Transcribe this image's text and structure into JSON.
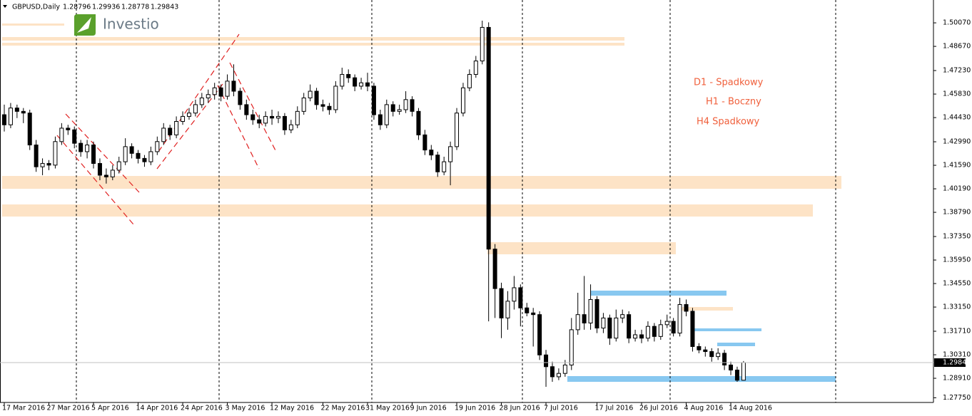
{
  "symbol": "GBPUSD,Daily",
  "logo": "Investio",
  "annotations": [
    "D1 - Spadkowy",
    "H1 - Boczny",
    "H4 Spadkowy"
  ],
  "chart_data": {
    "type": "candlestick",
    "categories": [
      "17 Mar 2016",
      null,
      null,
      null,
      null,
      null,
      null,
      "27 Mar 2016",
      null,
      null,
      null,
      null,
      null,
      null,
      "5 Apr 2016",
      null,
      null,
      null,
      null,
      null,
      null,
      "14 Apr 2016",
      null,
      null,
      null,
      null,
      null,
      null,
      "24 Apr 2016",
      null,
      null,
      null,
      null,
      null,
      null,
      "3 May 2016",
      null,
      null,
      null,
      null,
      null,
      null,
      "12 May 2016",
      null,
      null,
      null,
      null,
      null,
      null,
      null,
      "22 May 2016",
      null,
      null,
      null,
      null,
      null,
      null,
      "31 May 2016",
      null,
      null,
      null,
      null,
      null,
      null,
      "9 Jun 2016",
      null,
      null,
      null,
      null,
      null,
      null,
      "19 Jun 2016",
      null,
      null,
      null,
      null,
      null,
      null,
      "28 Jun 2016",
      null,
      null,
      null,
      null,
      null,
      null,
      "7 Jul 2016",
      null,
      null,
      null,
      null,
      null,
      null,
      null,
      "17 Jul 2016",
      null,
      null,
      null,
      null,
      null,
      null,
      "26 Jul 2016",
      null,
      null,
      null,
      null,
      null,
      null,
      "4 Aug 2016",
      null,
      null,
      null,
      null,
      null,
      null,
      "14 Aug 2016",
      null,
      null
    ],
    "ohlc": [
      [
        1.446,
        1.452,
        1.436,
        1.44
      ],
      [
        1.44,
        1.453,
        1.438,
        1.45
      ],
      [
        1.45,
        1.452,
        1.444,
        1.448
      ],
      [
        1.448,
        1.45,
        1.441,
        1.447
      ],
      [
        1.447,
        1.449,
        1.425,
        1.428
      ],
      [
        1.428,
        1.431,
        1.412,
        1.415
      ],
      [
        1.415,
        1.42,
        1.41,
        1.417
      ],
      [
        1.417,
        1.419,
        1.413,
        1.416
      ],
      [
        1.416,
        1.433,
        1.414,
        1.43
      ],
      [
        1.43,
        1.441,
        1.428,
        1.438
      ],
      [
        1.438,
        1.44,
        1.434,
        1.437
      ],
      [
        1.437,
        1.439,
        1.426,
        1.429
      ],
      [
        1.429,
        1.431,
        1.421,
        1.424
      ],
      [
        1.424,
        1.431,
        1.42,
        1.428
      ],
      [
        1.428,
        1.43,
        1.414,
        1.417
      ],
      [
        1.417,
        1.42,
        1.407,
        1.41
      ],
      [
        1.41,
        1.414,
        1.405,
        1.409
      ],
      [
        1.409,
        1.416,
        1.407,
        1.413
      ],
      [
        1.413,
        1.421,
        1.411,
        1.418
      ],
      [
        1.418,
        1.432,
        1.416,
        1.427
      ],
      [
        1.427,
        1.429,
        1.42,
        1.423
      ],
      [
        1.423,
        1.425,
        1.417,
        1.42
      ],
      [
        1.42,
        1.422,
        1.415,
        1.418
      ],
      [
        1.418,
        1.427,
        1.416,
        1.424
      ],
      [
        1.424,
        1.433,
        1.422,
        1.43
      ],
      [
        1.43,
        1.441,
        1.428,
        1.438
      ],
      [
        1.438,
        1.44,
        1.431,
        1.434
      ],
      [
        1.434,
        1.445,
        1.432,
        1.442
      ],
      [
        1.442,
        1.448,
        1.44,
        1.445
      ],
      [
        1.445,
        1.45,
        1.443,
        1.447
      ],
      [
        1.447,
        1.455,
        1.445,
        1.452
      ],
      [
        1.452,
        1.459,
        1.45,
        1.456
      ],
      [
        1.456,
        1.461,
        1.453,
        1.458
      ],
      [
        1.458,
        1.465,
        1.455,
        1.462
      ],
      [
        1.462,
        1.464,
        1.454,
        1.457
      ],
      [
        1.457,
        1.47,
        1.455,
        1.466
      ],
      [
        1.466,
        1.476,
        1.457,
        1.46
      ],
      [
        1.46,
        1.462,
        1.449,
        1.452
      ],
      [
        1.452,
        1.455,
        1.443,
        1.446
      ],
      [
        1.446,
        1.449,
        1.44,
        1.443
      ],
      [
        1.443,
        1.446,
        1.438,
        1.441
      ],
      [
        1.441,
        1.448,
        1.439,
        1.445
      ],
      [
        1.445,
        1.449,
        1.44,
        1.444
      ],
      [
        1.444,
        1.448,
        1.441,
        1.445
      ],
      [
        1.445,
        1.447,
        1.434,
        1.437
      ],
      [
        1.437,
        1.443,
        1.435,
        1.44
      ],
      [
        1.44,
        1.451,
        1.438,
        1.448
      ],
      [
        1.448,
        1.459,
        1.446,
        1.456
      ],
      [
        1.456,
        1.464,
        1.454,
        1.46
      ],
      [
        1.46,
        1.462,
        1.449,
        1.452
      ],
      [
        1.452,
        1.455,
        1.448,
        1.451
      ],
      [
        1.451,
        1.453,
        1.446,
        1.449
      ],
      [
        1.449,
        1.466,
        1.447,
        1.463
      ],
      [
        1.463,
        1.474,
        1.461,
        1.47
      ],
      [
        1.47,
        1.473,
        1.465,
        1.468
      ],
      [
        1.468,
        1.47,
        1.46,
        1.463
      ],
      [
        1.463,
        1.468,
        1.461,
        1.465
      ],
      [
        1.465,
        1.471,
        1.46,
        1.463
      ],
      [
        1.463,
        1.465,
        1.443,
        1.446
      ],
      [
        1.446,
        1.449,
        1.437,
        1.44
      ],
      [
        1.44,
        1.455,
        1.438,
        1.452
      ],
      [
        1.452,
        1.454,
        1.445,
        1.448
      ],
      [
        1.448,
        1.452,
        1.446,
        1.449
      ],
      [
        1.449,
        1.46,
        1.447,
        1.455
      ],
      [
        1.455,
        1.457,
        1.445,
        1.448
      ],
      [
        1.448,
        1.45,
        1.431,
        1.434
      ],
      [
        1.434,
        1.437,
        1.422,
        1.425
      ],
      [
        1.425,
        1.428,
        1.419,
        1.422
      ],
      [
        1.422,
        1.424,
        1.409,
        1.412
      ],
      [
        1.412,
        1.421,
        1.41,
        1.418
      ],
      [
        1.418,
        1.43,
        1.404,
        1.427
      ],
      [
        1.427,
        1.45,
        1.425,
        1.447
      ],
      [
        1.447,
        1.465,
        1.445,
        1.462
      ],
      [
        1.462,
        1.473,
        1.46,
        1.47
      ],
      [
        1.47,
        1.481,
        1.468,
        1.478
      ],
      [
        1.478,
        1.502,
        1.476,
        1.498
      ],
      [
        1.498,
        1.501,
        1.323,
        1.366
      ],
      [
        1.366,
        1.369,
        1.325,
        1.3425
      ],
      [
        1.3425,
        1.346,
        1.313,
        1.325
      ],
      [
        1.325,
        1.341,
        1.318,
        1.335
      ],
      [
        1.335,
        1.35,
        1.33,
        1.343
      ],
      [
        1.343,
        1.345,
        1.32,
        1.331
      ],
      [
        1.331,
        1.334,
        1.326,
        1.328
      ],
      [
        1.328,
        1.331,
        1.308,
        1.327
      ],
      [
        1.327,
        1.329,
        1.3,
        1.303
      ],
      [
        1.303,
        1.306,
        1.284,
        1.296
      ],
      [
        1.296,
        1.299,
        1.287,
        1.29
      ],
      [
        1.29,
        1.295,
        1.288,
        1.292
      ],
      [
        1.292,
        1.3,
        1.29,
        1.297
      ],
      [
        1.297,
        1.325,
        1.294,
        1.318
      ],
      [
        1.318,
        1.34,
        1.315,
        1.327
      ],
      [
        1.327,
        1.35,
        1.318,
        1.322
      ],
      [
        1.322,
        1.345,
        1.318,
        1.336
      ],
      [
        1.336,
        1.338,
        1.316,
        1.319
      ],
      [
        1.319,
        1.328,
        1.316,
        1.325
      ],
      [
        1.325,
        1.327,
        1.309,
        1.313
      ],
      [
        1.313,
        1.33,
        1.311,
        1.325
      ],
      [
        1.325,
        1.33,
        1.322,
        1.327
      ],
      [
        1.327,
        1.329,
        1.31,
        1.313
      ],
      [
        1.313,
        1.318,
        1.311,
        1.315
      ],
      [
        1.315,
        1.318,
        1.31,
        1.313
      ],
      [
        1.313,
        1.323,
        1.311,
        1.32
      ],
      [
        1.32,
        1.322,
        1.311,
        1.314
      ],
      [
        1.314,
        1.324,
        1.312,
        1.321
      ],
      [
        1.321,
        1.327,
        1.319,
        1.323
      ],
      [
        1.323,
        1.325,
        1.314,
        1.316
      ],
      [
        1.316,
        1.337,
        1.314,
        1.333
      ],
      [
        1.333,
        1.336,
        1.326,
        1.329
      ],
      [
        1.329,
        1.331,
        1.305,
        1.308
      ],
      [
        1.308,
        1.31,
        1.304,
        1.306
      ],
      [
        1.306,
        1.308,
        1.302,
        1.305
      ],
      [
        1.305,
        1.307,
        1.299,
        1.302
      ],
      [
        1.302,
        1.307,
        1.3,
        1.304
      ],
      [
        1.304,
        1.306,
        1.294,
        1.297
      ],
      [
        1.297,
        1.299,
        1.291,
        1.294
      ],
      [
        1.294,
        1.296,
        1.287,
        1.28796
      ],
      [
        1.28796,
        1.29936,
        1.28778,
        1.29843
      ]
    ],
    "ylim": [
      1.2747,
      1.5143
    ],
    "yticks": [
      {
        "value": 1.5007,
        "label": "1.50070"
      },
      {
        "value": 1.4867,
        "label": "1.48670"
      },
      {
        "value": 1.4723,
        "label": "1.47230"
      },
      {
        "value": 1.4583,
        "label": "1.45830"
      },
      {
        "value": 1.4443,
        "label": "1.44430"
      },
      {
        "value": 1.4299,
        "label": "1.42990"
      },
      {
        "value": 1.4159,
        "label": "1.41590"
      },
      {
        "value": 1.4019,
        "label": "1.40190"
      },
      {
        "value": 1.3879,
        "label": "1.38790"
      },
      {
        "value": 1.3735,
        "label": "1.37350"
      },
      {
        "value": 1.3595,
        "label": "1.35950"
      },
      {
        "value": 1.3455,
        "label": "1.34550"
      },
      {
        "value": 1.3315,
        "label": "1.33150"
      },
      {
        "value": 1.3171,
        "label": "1.31710"
      },
      {
        "value": 1.3031,
        "label": "1.30310"
      },
      {
        "value": 1.2891,
        "label": "1.28910"
      },
      {
        "value": 1.2775,
        "label": "1.27750"
      }
    ],
    "up_color": "#ffffff",
    "down_color": "#000000"
  }
}
